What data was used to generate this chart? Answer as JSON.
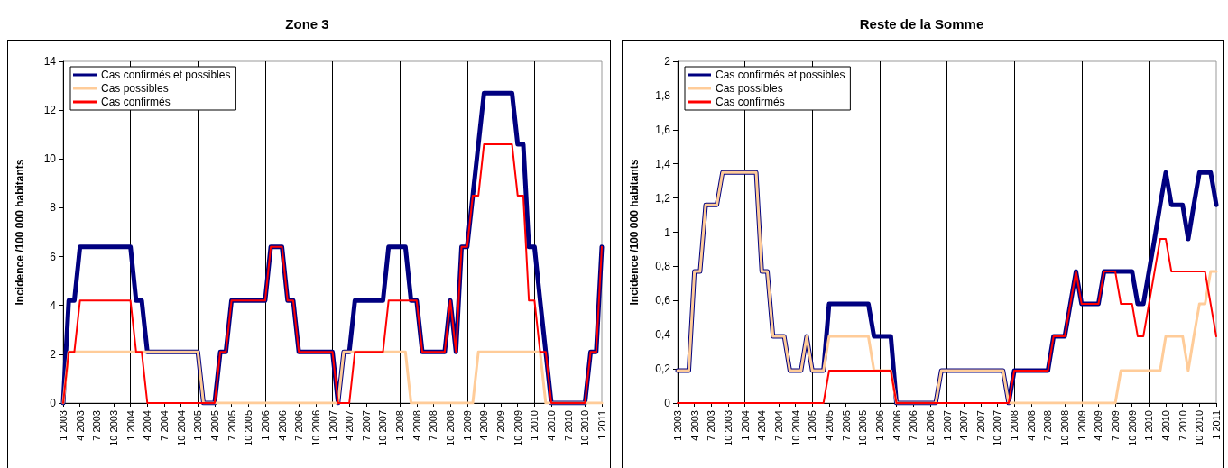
{
  "chart_data": [
    {
      "type": "line",
      "title": "Zone 3",
      "ylabel": "Incidence /100 000 habitants",
      "categories": [
        "1 2003",
        null,
        null,
        "4 2003",
        null,
        null,
        "7 2003",
        null,
        null,
        "10 2003",
        null,
        null,
        "1 2004",
        null,
        null,
        "4 2004",
        null,
        null,
        "7 2004",
        null,
        null,
        "10 2004",
        null,
        null,
        "1 2005",
        null,
        null,
        "4 2005",
        null,
        null,
        "7 2005",
        null,
        null,
        "10 2005",
        null,
        null,
        "1 2006",
        null,
        null,
        "4 2006",
        null,
        null,
        "7 2006",
        null,
        null,
        "10 2006",
        null,
        null,
        "1 2007",
        null,
        null,
        "4 2007",
        null,
        null,
        "7 2007",
        null,
        null,
        "10 2007",
        null,
        null,
        "1 2008",
        null,
        null,
        "4 2008",
        null,
        null,
        "7 2008",
        null,
        null,
        "10 2008",
        null,
        null,
        "1 2009",
        null,
        null,
        "4 2009",
        null,
        null,
        "7 2009",
        null,
        null,
        "10 2009",
        null,
        null,
        "1 2010",
        null,
        null,
        "4 2010",
        null,
        null,
        "7 2010",
        null,
        null,
        "10 2010",
        null,
        null,
        "1 2011"
      ],
      "series": [
        {
          "name": "Cas confirmés et possibles",
          "color": "#000080",
          "values": [
            0,
            4.2,
            4.2,
            6.4,
            6.4,
            6.4,
            6.4,
            6.4,
            6.4,
            6.4,
            6.4,
            6.4,
            6.4,
            4.2,
            4.2,
            2.1,
            2.1,
            2.1,
            2.1,
            2.1,
            2.1,
            2.1,
            2.1,
            2.1,
            2.1,
            0,
            0,
            0,
            2.1,
            2.1,
            4.2,
            4.2,
            4.2,
            4.2,
            4.2,
            4.2,
            4.2,
            6.4,
            6.4,
            6.4,
            4.2,
            4.2,
            2.1,
            2.1,
            2.1,
            2.1,
            2.1,
            2.1,
            2.1,
            0,
            2.1,
            2.1,
            4.2,
            4.2,
            4.2,
            4.2,
            4.2,
            4.2,
            6.4,
            6.4,
            6.4,
            6.4,
            4.2,
            4.2,
            2.1,
            2.1,
            2.1,
            2.1,
            2.1,
            4.2,
            2.1,
            6.4,
            6.4,
            8.5,
            10.6,
            12.7,
            12.7,
            12.7,
            12.7,
            12.7,
            12.7,
            10.6,
            10.6,
            6.4,
            6.4,
            4.2,
            2.1,
            0,
            0,
            0,
            0,
            0,
            0,
            0,
            2.1,
            2.1,
            6.4
          ]
        },
        {
          "name": "Cas possibles",
          "color": "#ffcc99",
          "values": [
            0,
            2.1,
            2.1,
            2.1,
            2.1,
            2.1,
            2.1,
            2.1,
            2.1,
            2.1,
            2.1,
            2.1,
            2.1,
            2.1,
            2.1,
            2.1,
            2.1,
            2.1,
            2.1,
            2.1,
            2.1,
            2.1,
            2.1,
            2.1,
            2.1,
            0,
            0,
            0,
            0,
            0,
            0,
            0,
            0,
            0,
            0,
            0,
            0,
            0,
            0,
            0,
            0,
            0,
            0,
            0,
            0,
            0,
            0,
            0,
            0,
            0,
            2.1,
            2.1,
            2.1,
            2.1,
            2.1,
            2.1,
            2.1,
            2.1,
            2.1,
            2.1,
            2.1,
            2.1,
            0,
            0,
            0,
            0,
            0,
            0,
            0,
            0,
            0,
            0,
            0,
            0,
            2.1,
            2.1,
            2.1,
            2.1,
            2.1,
            2.1,
            2.1,
            2.1,
            2.1,
            2.1,
            2.1,
            2.1,
            0,
            0,
            0,
            0,
            0,
            0,
            0,
            0,
            0,
            0,
            0
          ]
        },
        {
          "name": "Cas confirmés",
          "color": "#ff0000",
          "values": [
            0,
            2.1,
            2.1,
            4.2,
            4.2,
            4.2,
            4.2,
            4.2,
            4.2,
            4.2,
            4.2,
            4.2,
            4.2,
            2.1,
            2.1,
            0,
            0,
            0,
            0,
            0,
            0,
            0,
            0,
            0,
            0,
            0,
            0,
            0,
            2.1,
            2.1,
            4.2,
            4.2,
            4.2,
            4.2,
            4.2,
            4.2,
            4.2,
            6.4,
            6.4,
            6.4,
            4.2,
            4.2,
            2.1,
            2.1,
            2.1,
            2.1,
            2.1,
            2.1,
            2.1,
            0,
            0,
            0,
            2.1,
            2.1,
            2.1,
            2.1,
            2.1,
            2.1,
            4.2,
            4.2,
            4.2,
            4.2,
            4.2,
            4.2,
            2.1,
            2.1,
            2.1,
            2.1,
            2.1,
            4.2,
            2.1,
            6.4,
            6.4,
            8.5,
            8.5,
            10.6,
            10.6,
            10.6,
            10.6,
            10.6,
            10.6,
            8.5,
            8.5,
            4.2,
            4.2,
            2.1,
            2.1,
            0,
            0,
            0,
            0,
            0,
            0,
            0,
            2.1,
            2.1,
            6.4
          ]
        }
      ],
      "ylim": [
        0,
        14
      ],
      "yticks": [
        0,
        2,
        4,
        6,
        8,
        10,
        12,
        14
      ],
      "grid": "x",
      "legend": "top left"
    },
    {
      "type": "line",
      "title": "Reste de la Somme",
      "ylabel": "Incidence /100 000 habitants",
      "categories": [
        "1 2003",
        null,
        null,
        "4 2003",
        null,
        null,
        "7 2003",
        null,
        null,
        "10 2003",
        null,
        null,
        "1 2004",
        null,
        null,
        "4 2004",
        null,
        null,
        "7 2004",
        null,
        null,
        "10 2004",
        null,
        null,
        "1 2005",
        null,
        null,
        "4 2005",
        null,
        null,
        "7 2005",
        null,
        null,
        "10 2005",
        null,
        null,
        "1 2006",
        null,
        null,
        "4 2006",
        null,
        null,
        "7 2006",
        null,
        null,
        "10 2006",
        null,
        null,
        "1 2007",
        null,
        null,
        "4 2007",
        null,
        null,
        "7 2007",
        null,
        null,
        "10 2007",
        null,
        null,
        "1 2008",
        null,
        null,
        "4 2008",
        null,
        null,
        "7 2008",
        null,
        null,
        "10 2008",
        null,
        null,
        "1 2009",
        null,
        null,
        "4 2009",
        null,
        null,
        "7 2009",
        null,
        null,
        "10 2009",
        null,
        null,
        "1 2010",
        null,
        null,
        "4 2010",
        null,
        null,
        "7 2010",
        null,
        null,
        "10 2010",
        null,
        null,
        "1 2011"
      ],
      "series": [
        {
          "name": "Cas confirmés et possibles",
          "color": "#000080",
          "values": [
            0.19,
            0.19,
            0.19,
            0.77,
            0.77,
            1.16,
            1.16,
            1.16,
            1.35,
            1.35,
            1.35,
            1.35,
            1.35,
            1.35,
            1.35,
            0.77,
            0.77,
            0.39,
            0.39,
            0.39,
            0.19,
            0.19,
            0.19,
            0.39,
            0.19,
            0.19,
            0.19,
            0.58,
            0.58,
            0.58,
            0.58,
            0.58,
            0.58,
            0.58,
            0.58,
            0.39,
            0.39,
            0.39,
            0.39,
            0,
            0,
            0,
            0,
            0,
            0,
            0,
            0,
            0.19,
            0.19,
            0.19,
            0.19,
            0.19,
            0.19,
            0.19,
            0.19,
            0.19,
            0.19,
            0.19,
            0.19,
            0,
            0.19,
            0.19,
            0.19,
            0.19,
            0.19,
            0.19,
            0.19,
            0.39,
            0.39,
            0.39,
            0.58,
            0.77,
            0.58,
            0.58,
            0.58,
            0.58,
            0.77,
            0.77,
            0.77,
            0.77,
            0.77,
            0.77,
            0.58,
            0.58,
            0.77,
            0.96,
            1.16,
            1.35,
            1.16,
            1.16,
            1.16,
            0.96,
            1.16,
            1.35,
            1.35,
            1.35,
            1.16
          ]
        },
        {
          "name": "Cas possibles",
          "color": "#ffcc99",
          "values": [
            0.19,
            0.19,
            0.19,
            0.77,
            0.77,
            1.16,
            1.16,
            1.16,
            1.35,
            1.35,
            1.35,
            1.35,
            1.35,
            1.35,
            1.35,
            0.77,
            0.77,
            0.39,
            0.39,
            0.39,
            0.19,
            0.19,
            0.19,
            0.39,
            0.19,
            0.19,
            0.19,
            0.39,
            0.39,
            0.39,
            0.39,
            0.39,
            0.39,
            0.39,
            0.39,
            0.19,
            0.19,
            0.19,
            0.19,
            0,
            0,
            0,
            0,
            0,
            0,
            0,
            0,
            0.19,
            0.19,
            0.19,
            0.19,
            0.19,
            0.19,
            0.19,
            0.19,
            0.19,
            0.19,
            0.19,
            0.19,
            0,
            0,
            0,
            0,
            0,
            0,
            0,
            0,
            0,
            0,
            0,
            0,
            0,
            0,
            0,
            0,
            0,
            0,
            0,
            0,
            0.19,
            0.19,
            0.19,
            0.19,
            0.19,
            0.19,
            0.19,
            0.19,
            0.39,
            0.39,
            0.39,
            0.39,
            0.19,
            0.39,
            0.58,
            0.58,
            0.77,
            0.77
          ]
        },
        {
          "name": "Cas confirmés",
          "color": "#ff0000",
          "values": [
            0,
            0,
            0,
            0,
            0,
            0,
            0,
            0,
            0,
            0,
            0,
            0,
            0,
            0,
            0,
            0,
            0,
            0,
            0,
            0,
            0,
            0,
            0,
            0,
            0,
            0,
            0,
            0.19,
            0.19,
            0.19,
            0.19,
            0.19,
            0.19,
            0.19,
            0.19,
            0.19,
            0.19,
            0.19,
            0.19,
            0,
            0,
            0,
            0,
            0,
            0,
            0,
            0,
            0,
            0,
            0,
            0,
            0,
            0,
            0,
            0,
            0,
            0,
            0,
            0,
            0,
            0.19,
            0.19,
            0.19,
            0.19,
            0.19,
            0.19,
            0.19,
            0.39,
            0.39,
            0.39,
            0.58,
            0.77,
            0.58,
            0.58,
            0.58,
            0.58,
            0.77,
            0.77,
            0.77,
            0.58,
            0.58,
            0.58,
            0.39,
            0.39,
            0.58,
            0.77,
            0.96,
            0.96,
            0.77,
            0.77,
            0.77,
            0.77,
            0.77,
            0.77,
            0.77,
            0.58,
            0.39
          ]
        }
      ],
      "ylim": [
        0,
        2
      ],
      "yticks": [
        0,
        {
          "value": 0.2,
          "label": "0,2"
        },
        {
          "value": 0.4,
          "label": "0,4"
        },
        {
          "value": 0.6,
          "label": "0,6"
        },
        {
          "value": 0.8,
          "label": "0,8"
        },
        1,
        {
          "value": 1.2,
          "label": "1,2"
        },
        {
          "value": 1.4,
          "label": "1,4"
        },
        {
          "value": 1.6,
          "label": "1,6"
        },
        {
          "value": 1.8,
          "label": "1,8"
        },
        2
      ],
      "grid": "x",
      "legend": "top left"
    }
  ]
}
